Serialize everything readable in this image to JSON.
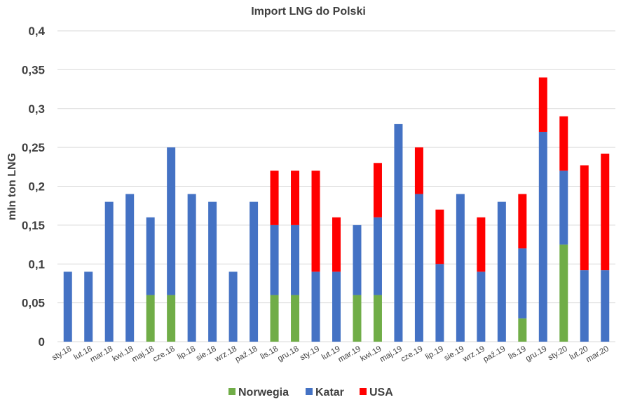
{
  "chart_data": {
    "type": "bar",
    "stacked": true,
    "title": "Import LNG do Polski",
    "xlabel": "",
    "ylabel": "mln ton LNG",
    "ylim": [
      0,
      0.4
    ],
    "yticks": [
      "0",
      "0,05",
      "0,1",
      "0,15",
      "0,2",
      "0,25",
      "0,3",
      "0,35",
      "0,4"
    ],
    "grid": true,
    "legend_position": "bottom",
    "categories": [
      "sty.18",
      "lut.18",
      "mar.18",
      "kwi.18",
      "maj.18",
      "cze.18",
      "lip.18",
      "sie.18",
      "wrz.18",
      "paź.18",
      "lis.18",
      "gru.18",
      "sty.19",
      "lut.19",
      "mar.19",
      "kwi.19",
      "maj.19",
      "cze.19",
      "lip.19",
      "sie.19",
      "wrz.19",
      "paź.19",
      "lis.19",
      "gru.19",
      "sty.20",
      "lut.20",
      "mar.20"
    ],
    "series": [
      {
        "name": "Norwegia",
        "color": "#70ad47",
        "values": [
          0,
          0,
          0,
          0,
          0.06,
          0.06,
          0,
          0,
          0,
          0,
          0.06,
          0.06,
          0,
          0,
          0.06,
          0.06,
          0,
          0,
          0,
          0,
          0,
          0,
          0.03,
          0,
          0.125,
          0,
          0
        ]
      },
      {
        "name": "Katar",
        "color": "#4472c4",
        "values": [
          0.09,
          0.09,
          0.18,
          0.19,
          0.1,
          0.19,
          0.19,
          0.18,
          0.09,
          0.18,
          0.09,
          0.09,
          0.09,
          0.09,
          0.09,
          0.1,
          0.28,
          0.19,
          0.1,
          0.19,
          0.09,
          0.18,
          0.09,
          0.27,
          0.095,
          0.092,
          0.092
        ]
      },
      {
        "name": "USA",
        "color": "#ff0000",
        "values": [
          0,
          0,
          0,
          0,
          0,
          0,
          0,
          0,
          0,
          0,
          0.07,
          0.07,
          0.13,
          0.07,
          0,
          0.07,
          0,
          0.06,
          0.07,
          0,
          0.07,
          0,
          0.07,
          0.07,
          0.07,
          0.135,
          0.15
        ]
      }
    ]
  }
}
